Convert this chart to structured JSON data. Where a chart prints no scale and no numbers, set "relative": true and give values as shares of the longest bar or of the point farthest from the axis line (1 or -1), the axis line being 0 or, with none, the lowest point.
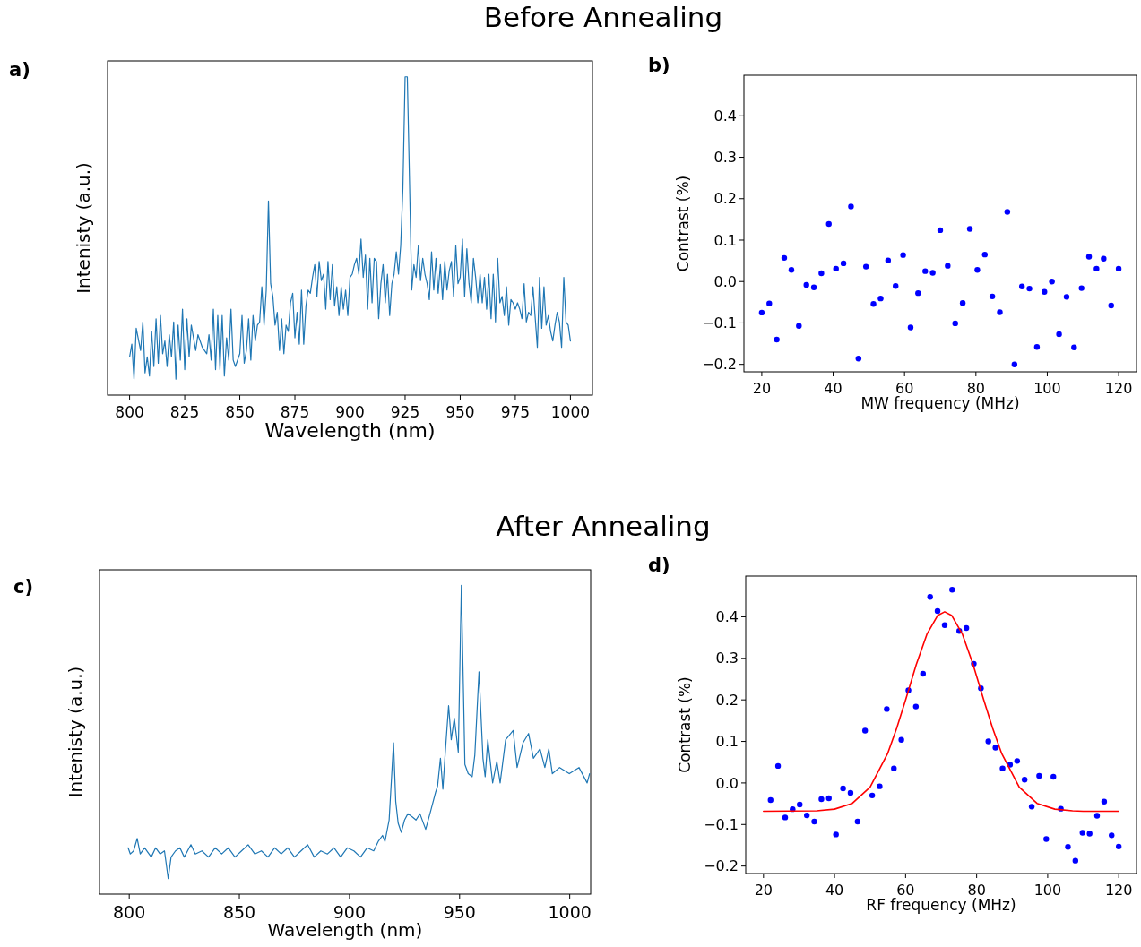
{
  "chart_data": [
    {
      "type": "line",
      "title": "Before Annealing",
      "xlabel": "Wavelength (nm)",
      "ylabel": "Intenisty (a.u.)",
      "annotations": [
        "a)"
      ],
      "relative": true,
      "tick_labels": "x",
      "xlim": [
        790,
        1010
      ],
      "xticks": [
        800,
        825,
        850,
        875,
        900,
        925,
        950,
        975,
        1000
      ],
      "series": [
        {
          "color": "#1f77b4",
          "x": [
            800,
            801,
            802,
            803,
            805,
            806,
            807,
            808,
            809,
            810,
            811,
            812,
            813,
            814,
            815,
            816,
            817,
            818,
            819,
            820,
            821,
            822,
            823,
            824,
            825,
            826,
            827,
            828,
            830,
            831,
            833,
            835,
            836,
            837,
            838,
            839,
            840,
            841,
            842,
            843,
            844,
            845,
            846,
            847,
            848,
            850,
            851,
            852,
            853,
            854,
            855,
            856,
            857,
            858,
            859,
            860,
            861,
            862,
            863,
            864,
            865,
            866,
            867,
            868,
            869,
            870,
            871,
            872,
            873,
            874,
            875,
            876,
            877,
            878,
            879,
            880,
            881,
            882,
            883,
            884,
            885,
            886,
            887,
            888,
            889,
            890,
            891,
            892,
            893,
            894,
            895,
            896,
            897,
            898,
            899,
            900,
            901,
            902,
            903,
            904,
            905,
            906,
            907,
            908,
            909,
            910,
            911,
            912,
            913,
            914,
            915,
            916,
            917,
            918,
            919,
            920,
            921,
            922,
            923,
            924,
            925,
            926,
            927,
            928,
            929,
            930,
            931,
            932,
            933,
            934,
            935,
            936,
            937,
            938,
            939,
            940,
            941,
            942,
            943,
            944,
            945,
            946,
            947,
            948,
            949,
            950,
            951,
            952,
            953,
            954,
            955,
            956,
            957,
            958,
            959,
            960,
            961,
            962,
            963,
            964,
            965,
            966,
            967,
            968,
            969,
            970,
            971,
            972,
            973,
            974,
            975,
            976,
            977,
            978,
            979,
            980,
            981,
            982,
            983,
            985,
            986,
            987,
            988,
            989,
            990,
            991,
            992,
            993,
            994,
            995,
            996,
            997,
            998,
            999,
            1000
          ],
          "values": [
            0.12,
            0.16,
            0.05,
            0.21,
            0.14,
            0.23,
            0.07,
            0.12,
            0.06,
            0.2,
            0.09,
            0.24,
            0.1,
            0.25,
            0.13,
            0.17,
            0.09,
            0.19,
            0.12,
            0.23,
            0.05,
            0.22,
            0.11,
            0.27,
            0.08,
            0.24,
            0.12,
            0.22,
            0.14,
            0.19,
            0.15,
            0.13,
            0.19,
            0.11,
            0.27,
            0.08,
            0.25,
            0.08,
            0.25,
            0.06,
            0.18,
            0.11,
            0.27,
            0.11,
            0.09,
            0.13,
            0.25,
            0.1,
            0.14,
            0.24,
            0.11,
            0.25,
            0.17,
            0.22,
            0.23,
            0.34,
            0.22,
            0.33,
            0.61,
            0.35,
            0.31,
            0.22,
            0.26,
            0.14,
            0.24,
            0.13,
            0.22,
            0.2,
            0.29,
            0.32,
            0.18,
            0.26,
            0.16,
            0.33,
            0.16,
            0.28,
            0.33,
            0.32,
            0.37,
            0.41,
            0.31,
            0.42,
            0.36,
            0.38,
            0.27,
            0.42,
            0.3,
            0.41,
            0.28,
            0.34,
            0.25,
            0.34,
            0.27,
            0.33,
            0.25,
            0.37,
            0.38,
            0.41,
            0.43,
            0.38,
            0.49,
            0.37,
            0.44,
            0.27,
            0.43,
            0.29,
            0.43,
            0.42,
            0.24,
            0.35,
            0.41,
            0.29,
            0.38,
            0.25,
            0.35,
            0.38,
            0.45,
            0.38,
            0.47,
            0.65,
            1.0,
            1.0,
            0.67,
            0.33,
            0.41,
            0.37,
            0.47,
            0.36,
            0.43,
            0.38,
            0.35,
            0.3,
            0.45,
            0.33,
            0.43,
            0.32,
            0.41,
            0.3,
            0.42,
            0.33,
            0.39,
            0.42,
            0.31,
            0.47,
            0.35,
            0.37,
            0.49,
            0.31,
            0.46,
            0.35,
            0.29,
            0.43,
            0.37,
            0.29,
            0.38,
            0.29,
            0.37,
            0.27,
            0.38,
            0.24,
            0.38,
            0.23,
            0.43,
            0.29,
            0.31,
            0.25,
            0.34,
            0.22,
            0.3,
            0.29,
            0.27,
            0.29,
            0.27,
            0.24,
            0.35,
            0.23,
            0.26,
            0.25,
            0.34,
            0.15,
            0.37,
            0.21,
            0.34,
            0.22,
            0.25,
            0.2,
            0.17,
            0.22,
            0.26,
            0.23,
            0.15,
            0.37,
            0.23,
            0.22,
            0.17
          ]
        }
      ]
    },
    {
      "type": "scatter",
      "xlabel": "MW frequency (MHz)",
      "ylabel": "Contrast (%)",
      "annotations": [
        "b)"
      ],
      "marker": "circle",
      "xlim": [
        15,
        125
      ],
      "xticks": [
        20,
        40,
        60,
        80,
        100,
        120
      ],
      "ylim": [
        -0.218,
        0.498
      ],
      "yticks": [
        {
          "value": -0.2,
          "label": "−0.2"
        },
        {
          "value": -0.1,
          "label": "−0.1"
        },
        {
          "value": 0,
          "label": "0.0"
        },
        {
          "value": 0.1,
          "label": "0.1"
        },
        {
          "value": 0.2,
          "label": "0.2"
        },
        {
          "value": 0.3,
          "label": "0.3"
        },
        {
          "value": 0.4,
          "label": "0.4"
        }
      ],
      "series": [
        {
          "color": "#0000ff",
          "x": [
            20,
            22.1,
            24.2,
            26.3,
            28.3,
            30.4,
            32.5,
            34.6,
            36.7,
            38.8,
            40.8,
            42.9,
            45,
            47.1,
            49.2,
            51.3,
            53.3,
            55.4,
            57.5,
            59.6,
            61.7,
            63.8,
            65.8,
            67.9,
            70,
            72.1,
            74.2,
            76.3,
            78.3,
            80.4,
            82.5,
            84.6,
            86.7,
            88.8,
            90.8,
            92.9,
            95,
            97.1,
            99.2,
            101.3,
            103.3,
            105.4,
            107.5,
            109.6,
            111.7,
            113.8,
            115.8,
            117.9,
            120
          ],
          "values": [
            -0.075,
            -0.053,
            -0.14,
            0.057,
            0.028,
            -0.107,
            -0.008,
            -0.014,
            0.02,
            0.139,
            0.031,
            0.044,
            0.181,
            -0.186,
            0.036,
            -0.054,
            -0.041,
            0.051,
            -0.011,
            0.064,
            -0.111,
            -0.028,
            0.025,
            0.021,
            0.124,
            0.038,
            -0.101,
            -0.052,
            0.127,
            0.028,
            0.065,
            -0.036,
            -0.074,
            0.168,
            -0.2,
            -0.012,
            -0.017,
            -0.158,
            -0.025,
            0.0,
            -0.127,
            -0.037,
            -0.159,
            -0.016,
            0.06,
            0.031,
            0.055,
            -0.058,
            0.031
          ]
        }
      ]
    },
    {
      "type": "line",
      "title": "After Annealing",
      "xlabel": "Wavelength (nm)",
      "ylabel": "Intenisty (a.u.)",
      "annotations": [
        "c)"
      ],
      "relative": true,
      "tick_labels": "x",
      "xlim": [
        786.5,
        1009.5
      ],
      "xticks": [
        800,
        850,
        900,
        950,
        1000
      ],
      "series": [
        {
          "color": "#1f77b4",
          "x": [
            799.5,
            800.5,
            802,
            803.6,
            805,
            807,
            810,
            812,
            814,
            816,
            817.7,
            819,
            821,
            823,
            825,
            828,
            830,
            833,
            836,
            839,
            842,
            845,
            848,
            851,
            854,
            857,
            860,
            863,
            866,
            869,
            872,
            875,
            878,
            881,
            884,
            887,
            890,
            893,
            896,
            899,
            902,
            905,
            908,
            911,
            913,
            915,
            916.1,
            918,
            920,
            921,
            922.1,
            923.5,
            925,
            926.5,
            928.5,
            930.2,
            932,
            934.6,
            936.9,
            939.1,
            940,
            941.3,
            942.4,
            943.5,
            945,
            946.2,
            947.6,
            949.4,
            950.8,
            952.4,
            953.9,
            955.7,
            956.9,
            958.8,
            960.6,
            961.6,
            962.8,
            965,
            966.9,
            968.4,
            970.9,
            974.3,
            976.1,
            978.8,
            981.3,
            983.5,
            986.5,
            988.7,
            990.5,
            992.1,
            995.4,
            999.8,
            1004.2,
            1007.9,
            1009
          ],
          "values": [
            0.15,
            0.13,
            0.14,
            0.18,
            0.13,
            0.15,
            0.12,
            0.15,
            0.13,
            0.14,
            0.05,
            0.12,
            0.14,
            0.15,
            0.12,
            0.16,
            0.13,
            0.14,
            0.12,
            0.15,
            0.13,
            0.15,
            0.12,
            0.14,
            0.16,
            0.13,
            0.14,
            0.12,
            0.15,
            0.13,
            0.15,
            0.12,
            0.14,
            0.16,
            0.12,
            0.14,
            0.13,
            0.15,
            0.12,
            0.15,
            0.14,
            0.12,
            0.15,
            0.14,
            0.17,
            0.19,
            0.17,
            0.24,
            0.49,
            0.3,
            0.23,
            0.2,
            0.24,
            0.26,
            0.25,
            0.24,
            0.26,
            0.21,
            0.27,
            0.33,
            0.35,
            0.44,
            0.34,
            0.46,
            0.61,
            0.5,
            0.57,
            0.46,
            1.0,
            0.42,
            0.39,
            0.38,
            0.45,
            0.72,
            0.44,
            0.38,
            0.5,
            0.36,
            0.43,
            0.36,
            0.5,
            0.53,
            0.41,
            0.49,
            0.52,
            0.44,
            0.47,
            0.41,
            0.47,
            0.39,
            0.41,
            0.39,
            0.41,
            0.36,
            0.39
          ]
        }
      ]
    },
    {
      "type": "scatter",
      "xlabel": "RF frequency (MHz)",
      "ylabel": "Contrast (%)",
      "annotations": [
        "d)"
      ],
      "xlim": [
        15,
        125
      ],
      "xticks": [
        20,
        40,
        60,
        80,
        100,
        120
      ],
      "ylim": [
        -0.218,
        0.498
      ],
      "yticks": [
        {
          "value": -0.2,
          "label": "−0.2"
        },
        {
          "value": -0.1,
          "label": "−0.1"
        },
        {
          "value": 0,
          "label": "0.0"
        },
        {
          "value": 0.1,
          "label": "0.1"
        },
        {
          "value": 0.2,
          "label": "0.2"
        },
        {
          "value": 0.3,
          "label": "0.3"
        },
        {
          "value": 0.4,
          "label": "0.4"
        }
      ],
      "series": [
        {
          "color": "#0000ff",
          "marker": "circle",
          "x": [
            22.0,
            24.1,
            26.1,
            28.2,
            30.2,
            32.2,
            34.3,
            36.3,
            38.4,
            40.4,
            42.4,
            44.5,
            46.5,
            48.6,
            50.6,
            52.7,
            54.7,
            56.7,
            58.8,
            60.8,
            62.9,
            64.9,
            66.9,
            69.0,
            71.0,
            73.1,
            75.1,
            77.1,
            79.2,
            81.2,
            83.3,
            85.3,
            87.3,
            89.4,
            91.4,
            93.5,
            95.5,
            97.6,
            99.6,
            101.6,
            103.7,
            105.7,
            107.8,
            109.8,
            111.8,
            113.9,
            115.9,
            118.0,
            120.0
          ],
          "values": [
            -0.041,
            0.041,
            -0.083,
            -0.063,
            -0.052,
            -0.078,
            -0.093,
            -0.039,
            -0.037,
            -0.124,
            -0.013,
            -0.024,
            -0.093,
            0.126,
            -0.03,
            -0.008,
            0.178,
            0.035,
            0.104,
            0.223,
            0.184,
            0.263,
            0.448,
            0.414,
            0.38,
            0.465,
            0.366,
            0.373,
            0.287,
            0.228,
            0.1,
            0.085,
            0.035,
            0.044,
            0.053,
            0.008,
            -0.057,
            0.017,
            -0.135,
            0.015,
            -0.062,
            -0.154,
            -0.187,
            -0.12,
            -0.122,
            -0.079,
            -0.045,
            -0.126,
            -0.153
          ]
        },
        {
          "type": "line",
          "color": "#ff0000",
          "x": [
            20,
            35,
            40,
            45,
            50,
            55,
            57.5,
            60,
            63,
            66,
            69,
            71,
            73,
            76,
            79,
            82,
            84.5,
            87,
            92,
            97,
            102,
            107,
            110,
            120
          ],
          "values": [
            -0.068,
            -0.067,
            -0.063,
            -0.049,
            -0.01,
            0.072,
            0.132,
            0.2,
            0.285,
            0.358,
            0.403,
            0.412,
            0.403,
            0.358,
            0.285,
            0.2,
            0.132,
            0.072,
            -0.01,
            -0.049,
            -0.063,
            -0.067,
            -0.068,
            -0.068
          ]
        }
      ]
    }
  ]
}
